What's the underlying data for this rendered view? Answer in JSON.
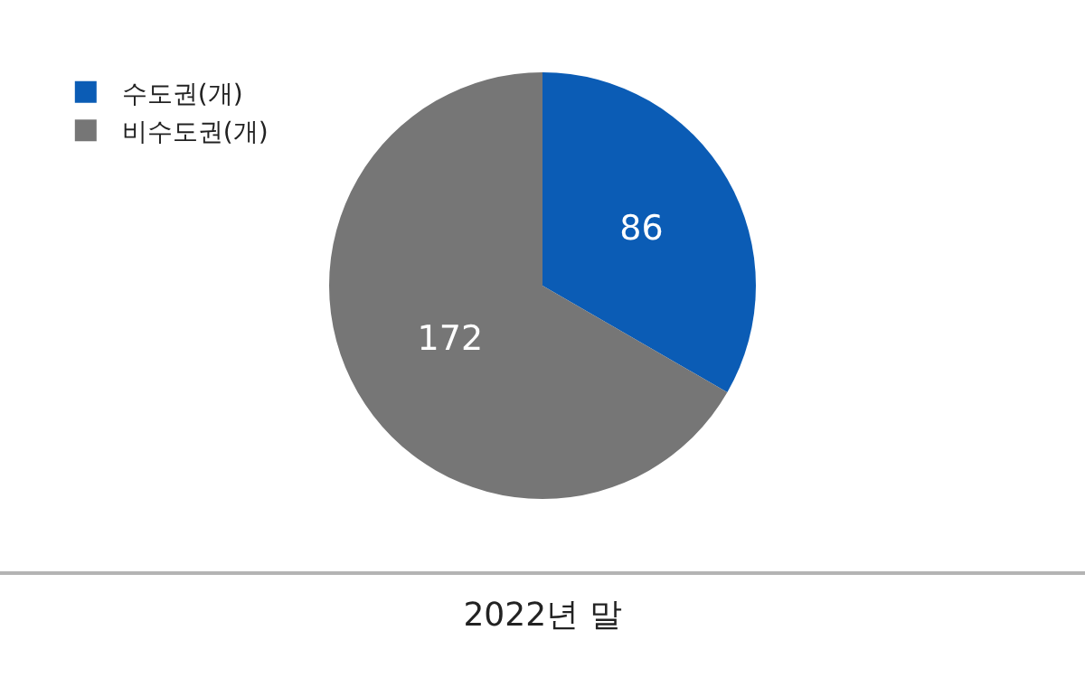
{
  "chart_data": {
    "type": "pie",
    "xlabel": "2022년 말",
    "categories": [
      "수도권(개)",
      "비수도권(개)"
    ],
    "values": [
      86,
      172
    ],
    "colors": [
      "#0b5cb5",
      "#767676"
    ],
    "data_labels": true,
    "legend": "top left"
  }
}
